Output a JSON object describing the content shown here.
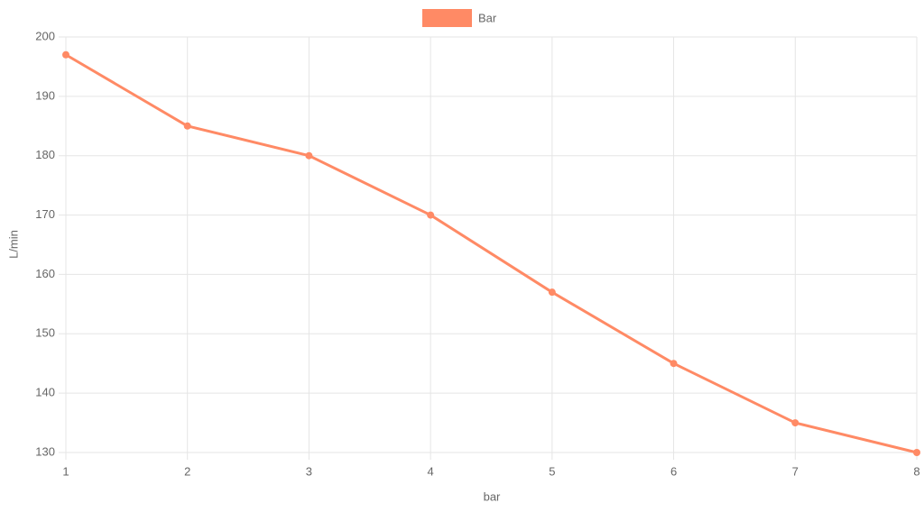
{
  "chart_data": {
    "type": "line",
    "x_label": "bar",
    "y_label": "L/min",
    "x": [
      1,
      2,
      3,
      4,
      5,
      6,
      7,
      8
    ],
    "series": [
      {
        "name": "Bar",
        "color": "#ff8a65",
        "values": [
          197,
          185,
          180,
          170,
          157,
          145,
          135,
          130
        ]
      }
    ],
    "xlim": [
      1,
      8
    ],
    "xticks": [
      1,
      2,
      3,
      4,
      5,
      6,
      7,
      8
    ],
    "ylim": [
      130,
      200
    ],
    "yticks": [
      130,
      140,
      150,
      160,
      170,
      180,
      190,
      200
    ],
    "grid": true,
    "legend": "top"
  }
}
